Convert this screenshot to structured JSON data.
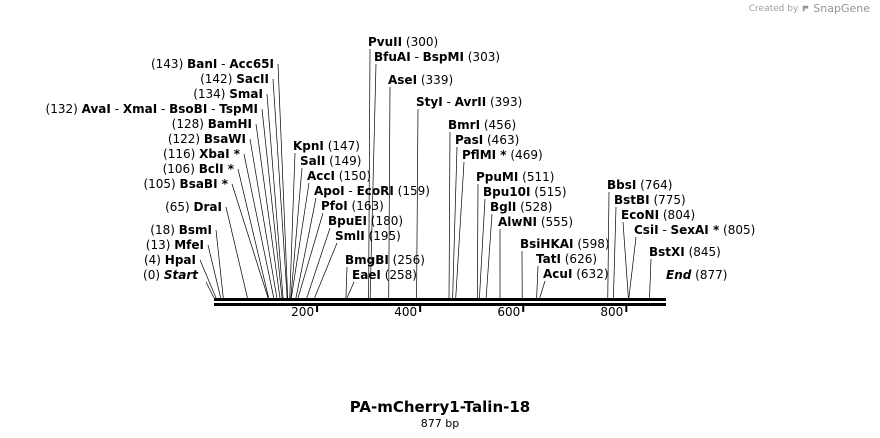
{
  "credit": {
    "created_by": "Created by",
    "brand": "SnapGene"
  },
  "map": {
    "name": "PA-mCherry1-Talin-18",
    "length_label": "877 bp",
    "length_bp": 877,
    "start_label": "Start",
    "start_pos": "(0)",
    "end_label": "End",
    "end_pos": "(877)",
    "ticks": [
      {
        "bp": 200,
        "label": "200"
      },
      {
        "bp": 400,
        "label": "400"
      },
      {
        "bp": 600,
        "label": "600"
      },
      {
        "bp": 800,
        "label": "800"
      }
    ],
    "left_labels": [
      {
        "text": "(143)  BanI  -  Acc65I",
        "pos": "(143)",
        "names": [
          "BanI",
          "Acc65I"
        ],
        "bp": [
          143,
          143
        ]
      },
      {
        "text": "(142)  SacII",
        "pos": "(142)",
        "names": [
          "SacII"
        ],
        "bp": [
          142
        ]
      },
      {
        "text": "(134)  SmaI",
        "pos": "(134)",
        "names": [
          "SmaI"
        ],
        "bp": [
          134
        ]
      },
      {
        "text": "(132)  AvaI  -  XmaI  -  BsoBI  -  TspMI",
        "pos": "(132)",
        "names": [
          "AvaI",
          "XmaI",
          "BsoBI",
          "TspMI"
        ],
        "bp": [
          132,
          132,
          132,
          132
        ]
      },
      {
        "text": "(128)  BamHI",
        "pos": "(128)",
        "names": [
          "BamHI"
        ],
        "bp": [
          128
        ]
      },
      {
        "text": "(122)  BsaWI",
        "pos": "(122)",
        "names": [
          "BsaWI"
        ],
        "bp": [
          122
        ]
      },
      {
        "text": "(116)  XbaI *",
        "pos": "(116)",
        "names": [
          "XbaI *"
        ],
        "bp": [
          116
        ]
      },
      {
        "text": "(106)  BclI *",
        "pos": "(106)",
        "names": [
          "BclI *"
        ],
        "bp": [
          106
        ]
      },
      {
        "text": "(105)  BsaBI *",
        "pos": "(105)",
        "names": [
          "BsaBI *"
        ],
        "bp": [
          105
        ]
      },
      {
        "text": "(65)  DraI",
        "pos": "(65)",
        "names": [
          "DraI"
        ],
        "bp": [
          65
        ]
      },
      {
        "text": "(18)  BsmI",
        "pos": "(18)",
        "names": [
          "BsmI"
        ],
        "bp": [
          18
        ]
      },
      {
        "text": "(13)  MfeI",
        "pos": "(13)",
        "names": [
          "MfeI"
        ],
        "bp": [
          13
        ]
      },
      {
        "text": "(4)  HpaI",
        "pos": "(4)",
        "names": [
          "HpaI"
        ],
        "bp": [
          4
        ]
      }
    ],
    "right_labels": [
      {
        "text": "PvuII  (300)",
        "names": [
          "PvuII"
        ],
        "pos": "(300)",
        "bp": 300
      },
      {
        "text": "BfuAI  -  BspMI  (303)",
        "names": [
          "BfuAI",
          "BspMI"
        ],
        "pos": "(303)",
        "bp": 303
      },
      {
        "text": "AseI  (339)",
        "names": [
          "AseI"
        ],
        "pos": "(339)",
        "bp": 339
      },
      {
        "text": "StyI  -  AvrII  (393)",
        "names": [
          "StyI",
          "AvrII"
        ],
        "pos": "(393)",
        "bp": 393
      },
      {
        "text": "KpnI  (147)",
        "names": [
          "KpnI"
        ],
        "pos": "(147)",
        "bp": 147
      },
      {
        "text": "SalI  (149)",
        "names": [
          "SalI"
        ],
        "pos": "(149)",
        "bp": 149
      },
      {
        "text": "AccI  (150)",
        "names": [
          "AccI"
        ],
        "pos": "(150)",
        "bp": 150
      },
      {
        "text": "ApoI  -  EcoRI  (159)",
        "names": [
          "ApoI",
          "EcoRI"
        ],
        "pos": "(159)",
        "bp": 159
      },
      {
        "text": "PfoI  (163)",
        "names": [
          "PfoI"
        ],
        "pos": "(163)",
        "bp": 163
      },
      {
        "text": "BpuEI  (180)",
        "names": [
          "BpuEI"
        ],
        "pos": "(180)",
        "bp": 180
      },
      {
        "text": "SmlI  (195)",
        "names": [
          "SmlI"
        ],
        "pos": "(195)",
        "bp": 195
      },
      {
        "text": "BmgBI  (256)",
        "names": [
          "BmgBI"
        ],
        "pos": "(256)",
        "bp": 256
      },
      {
        "text": "EaeI  (258)",
        "names": [
          "EaeI"
        ],
        "pos": "(258)",
        "bp": 258
      },
      {
        "text": "BmrI  (456)",
        "names": [
          "BmrI"
        ],
        "pos": "(456)",
        "bp": 456
      },
      {
        "text": "PasI  (463)",
        "names": [
          "PasI"
        ],
        "pos": "(463)",
        "bp": 463
      },
      {
        "text": "PflMI *  (469)",
        "names": [
          "PflMI *"
        ],
        "pos": "(469)",
        "bp": 469
      },
      {
        "text": "PpuMI  (511)",
        "names": [
          "PpuMI"
        ],
        "pos": "(511)",
        "bp": 511
      },
      {
        "text": "Bpu10I  (515)",
        "names": [
          "Bpu10I"
        ],
        "pos": "(515)",
        "bp": 515
      },
      {
        "text": "BglI  (528)",
        "names": [
          "BglI"
        ],
        "pos": "(528)",
        "bp": 528
      },
      {
        "text": "AlwNI  (555)",
        "names": [
          "AlwNI"
        ],
        "pos": "(555)",
        "bp": 555
      },
      {
        "text": "BsiHKAI  (598)",
        "names": [
          "BsiHKAI"
        ],
        "pos": "(598)",
        "bp": 598
      },
      {
        "text": "TatI  (626)",
        "names": [
          "TatI"
        ],
        "pos": "(626)",
        "bp": 626
      },
      {
        "text": "AcuI  (632)",
        "names": [
          "AcuI"
        ],
        "pos": "(632)",
        "bp": 632
      },
      {
        "text": "BbsI  (764)",
        "names": [
          "BbsI"
        ],
        "pos": "(764)",
        "bp": 764
      },
      {
        "text": "BstBI  (775)",
        "names": [
          "BstBI"
        ],
        "pos": "(775)",
        "bp": 775
      },
      {
        "text": "EcoNI  (804)",
        "names": [
          "EcoNI"
        ],
        "pos": "(804)",
        "bp": 804
      },
      {
        "text": "CsiI  -  SexAI *  (805)",
        "names": [
          "CsiI",
          "SexAI *"
        ],
        "pos": "(805)",
        "bp": 805
      },
      {
        "text": "BstXI  (845)",
        "names": [
          "BstXI"
        ],
        "pos": "(845)",
        "bp": 845
      }
    ]
  }
}
